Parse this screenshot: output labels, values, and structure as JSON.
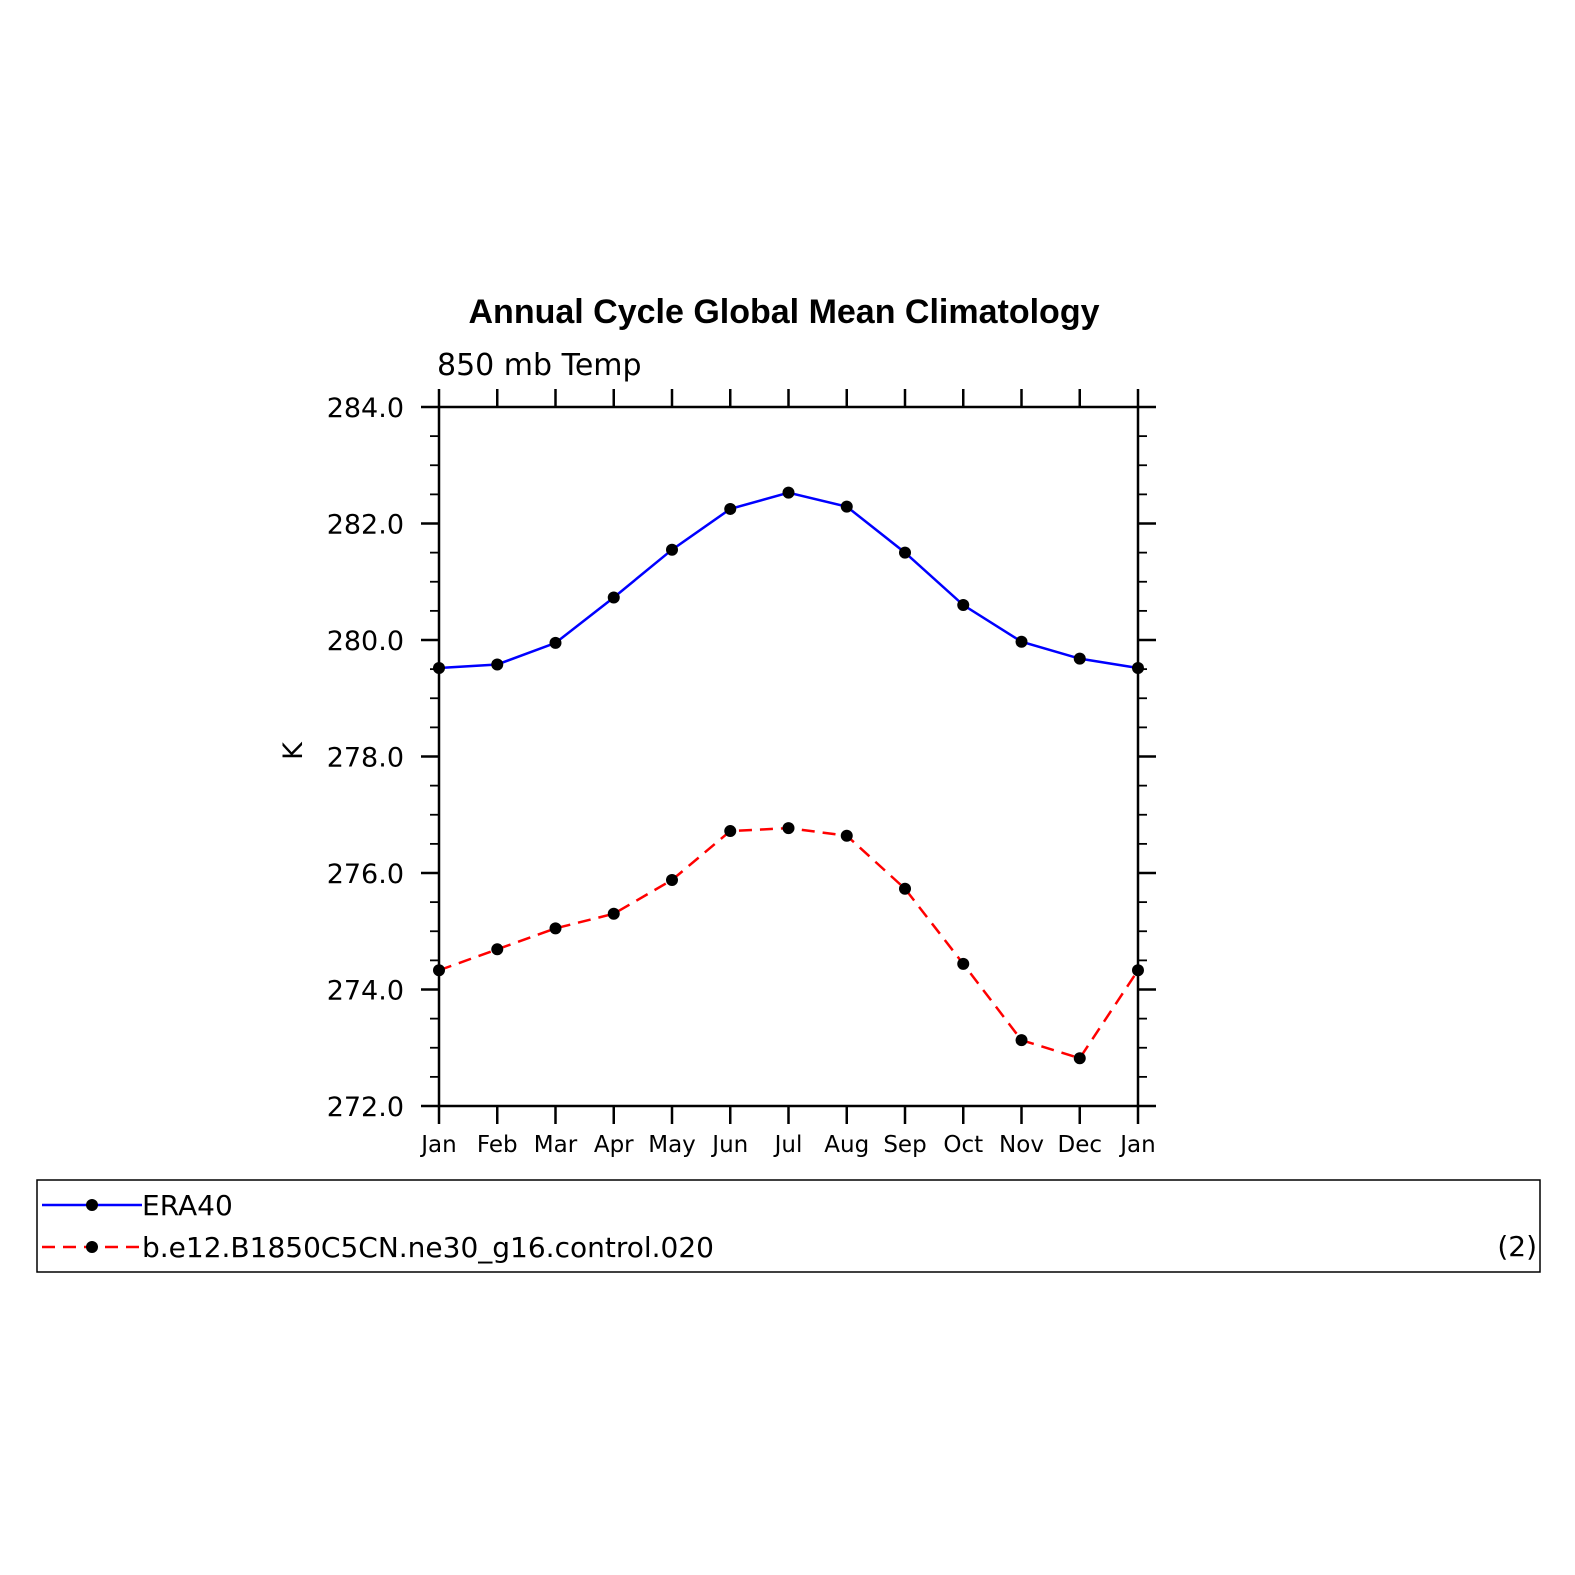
{
  "chart_data": {
    "type": "line",
    "title": "Annual Cycle Global Mean Climatology",
    "subtitle": "850 mb Temp",
    "xlabel": "",
    "ylabel": "K",
    "categories": [
      "Jan",
      "Feb",
      "Mar",
      "Apr",
      "May",
      "Jun",
      "Jul",
      "Aug",
      "Sep",
      "Oct",
      "Nov",
      "Dec",
      "Jan"
    ],
    "ylim": [
      272.0,
      284.0
    ],
    "yticks": [
      "272.0",
      "274.0",
      "276.0",
      "278.0",
      "280.0",
      "282.0",
      "284.0"
    ],
    "series": [
      {
        "name": "ERA40",
        "color": "#0000ff",
        "style": "solid",
        "values": [
          279.52,
          279.58,
          279.95,
          280.73,
          281.55,
          282.25,
          282.53,
          282.29,
          281.5,
          280.6,
          279.97,
          279.68,
          279.52
        ]
      },
      {
        "name": "b.e12.B1850C5CN.ne30_g16.control.020",
        "color": "#ff0000",
        "style": "dashed",
        "values": [
          274.33,
          274.69,
          275.05,
          275.3,
          275.88,
          276.72,
          276.77,
          276.64,
          275.73,
          274.44,
          273.13,
          272.82,
          274.33
        ]
      }
    ],
    "legend_position": "bottom",
    "legend_note": "(2)",
    "grid": false
  }
}
